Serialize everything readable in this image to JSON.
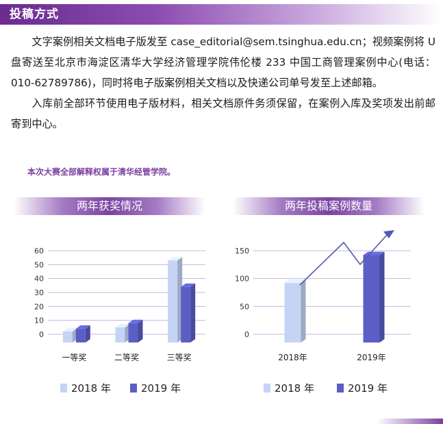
{
  "header": {
    "title": "投稿方式"
  },
  "body": {
    "paragraph1": "文字案例相关文档电子版发至 case_editorial@sem.tsinghua.edu.cn；视频案例将 U 盘寄送至北京市海淀区清华大学经济管理学院伟伦楼 233 中国工商管理案例中心(电话：010-62789786)，同时将电子版案例相关文档以及快递公司单号发至上述邮箱。",
    "paragraph2": "入库前全部环节使用电子版材料，相关文档原件务须保留，在案例入库及奖项发出前邮寄到中心。",
    "note": "本次大赛全部解释权属于清华经管学院。"
  },
  "colors": {
    "accent": "#7b3fa0",
    "series2018": "#c5d3f5",
    "series2019": "#5b5ec4",
    "arrow": "#4f5bb0"
  },
  "chart_data": [
    {
      "type": "bar",
      "title": "两年获奖情况",
      "categories": [
        "一等奖",
        "二等奖",
        "三等奖"
      ],
      "series": [
        {
          "name": "2018 年",
          "values": [
            2,
            5,
            53
          ]
        },
        {
          "name": "2019 年",
          "values": [
            4,
            8,
            34
          ]
        }
      ],
      "yticks": [
        "0",
        "10",
        "20",
        "30",
        "40",
        "50",
        "60"
      ],
      "ylim": [
        0,
        60
      ],
      "grid": true,
      "legend_position": "bottom"
    },
    {
      "type": "bar",
      "title": "两年投稿案例数量",
      "categories": [
        "2018年",
        "2019年"
      ],
      "series": [
        {
          "name": "2018 年",
          "values": [
            92,
            null
          ]
        },
        {
          "name": "2019 年",
          "values": [
            null,
            142
          ]
        }
      ],
      "yticks": [
        "0",
        "50",
        "100",
        "150"
      ],
      "ylim": [
        0,
        150
      ],
      "grid": true,
      "legend_position": "bottom",
      "annotation": "upward trend arrow"
    }
  ]
}
